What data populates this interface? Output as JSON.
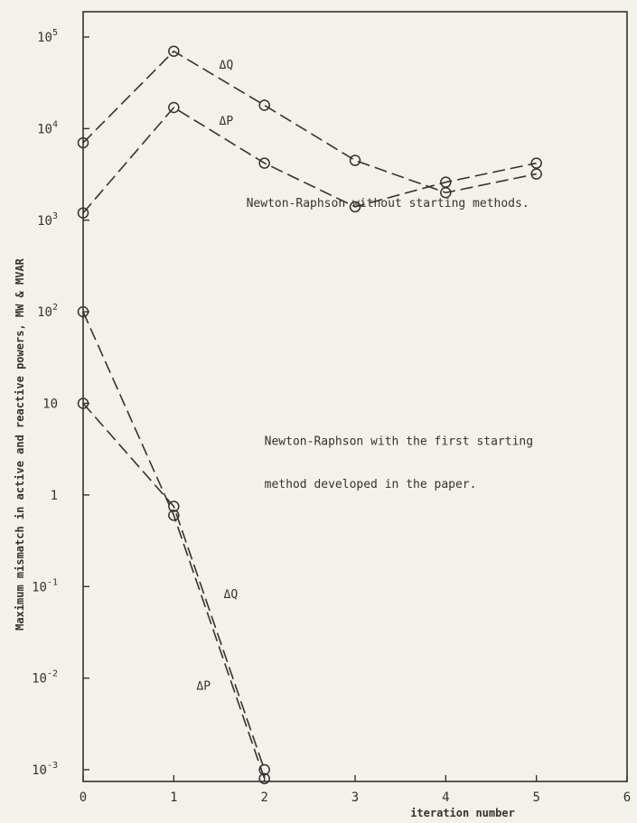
{
  "chart_data": {
    "type": "line",
    "xlabel": "iteration number",
    "ylabel": "Maximum mismatch in active and reactive powers, MW & MVAR",
    "x_ticks": [
      "0",
      "1",
      "2",
      "3",
      "4",
      "5",
      "6"
    ],
    "y_ticks": [
      "10^-3",
      "10^-2",
      "10^-1",
      "1",
      "10",
      "10^2",
      "10^3",
      "10^4",
      "10^5"
    ],
    "xlim": [
      0,
      6
    ],
    "ylim": [
      0.0006,
      200000
    ],
    "yscale": "log",
    "grid": false,
    "annotations": [
      {
        "text": "Newton-Raphson without starting methods.",
        "x": 1.8,
        "y": 1400
      },
      {
        "text": "Newton-Raphson with the first starting",
        "x": 2.0,
        "y": 3.5
      },
      {
        "text": "method developed in the paper.",
        "x": 2.0,
        "y": 1.2
      }
    ],
    "series": [
      {
        "name": "ΔQ",
        "x": [
          0,
          1,
          2,
          3,
          4,
          5
        ],
        "y": [
          7000,
          70000,
          18000,
          4500,
          2000,
          3200
        ],
        "label_at": [
          1.5,
          45000
        ]
      },
      {
        "name": "ΔP",
        "x": [
          0,
          1,
          2,
          3,
          4,
          5
        ],
        "y": [
          1200,
          17000,
          4200,
          1400,
          2600,
          4200
        ],
        "label_at": [
          1.5,
          11000
        ]
      },
      {
        "name": "ΔQ",
        "x": [
          0,
          1,
          2
        ],
        "y": [
          10,
          0.75,
          0.001
        ],
        "label_at": [
          1.55,
          0.075
        ]
      },
      {
        "name": "ΔP",
        "x": [
          0,
          1,
          2
        ],
        "y": [
          100,
          0.6,
          0.0008
        ],
        "label_at": [
          1.25,
          0.0075
        ]
      }
    ]
  }
}
